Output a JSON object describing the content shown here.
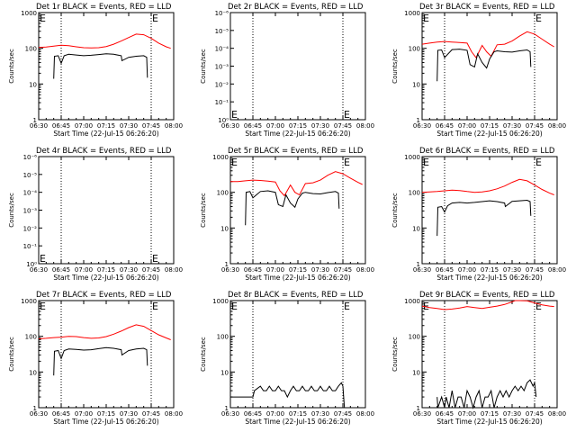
{
  "colors": {
    "events": "#000000",
    "lld": "#ff0000",
    "axes": "#000000",
    "background": "#ffffff"
  },
  "x_tick_labels": [
    "06:30",
    "06:45",
    "07:00",
    "07:15",
    "07:30",
    "07:45",
    "08:00"
  ],
  "x_range_minutes": [
    0,
    90
  ],
  "vlines_minutes": [
    15,
    75
  ],
  "xlabel": "Start Time (22-Jul-15 06:26:20)",
  "ylabel": "Counts/sec",
  "marker_text": "E",
  "log_ticks": [
    "1",
    "10",
    "100",
    "1000"
  ],
  "empty_ticks": [
    "10⁰",
    "10⁻¹",
    "10⁻²",
    "10⁻³",
    "10⁻⁴",
    "10⁻⁵",
    "10⁻⁶"
  ],
  "chart_data": [
    {
      "type": "line",
      "title": "Det 1r BLACK = Events, RED = LLD",
      "empty": false,
      "ylim": [
        1,
        1000
      ],
      "yscale": "log",
      "series": [
        {
          "color": "#ff0000",
          "x": [
            0,
            5,
            10,
            15,
            20,
            25,
            30,
            35,
            40,
            45,
            50,
            55,
            60,
            65,
            70,
            75,
            80,
            85,
            88
          ],
          "values": [
            105,
            108,
            115,
            122,
            118,
            110,
            104,
            102,
            104,
            112,
            130,
            160,
            200,
            250,
            240,
            190,
            140,
            110,
            100
          ]
        },
        {
          "color": "#000000",
          "x": [
            10,
            10.5,
            13,
            15,
            17,
            20,
            25,
            30,
            35,
            40,
            45,
            50,
            55,
            55.5,
            60,
            65,
            70,
            72,
            72.5
          ],
          "values": [
            14,
            60,
            62,
            38,
            62,
            68,
            65,
            62,
            64,
            67,
            70,
            68,
            62,
            45,
            56,
            60,
            62,
            56,
            15
          ]
        }
      ]
    },
    {
      "type": "line",
      "title": "Det 2r BLACK = Events, RED = LLD",
      "empty": true,
      "series": []
    },
    {
      "type": "line",
      "title": "Det 3r BLACK = Events, RED = LLD",
      "empty": false,
      "ylim": [
        1,
        1000
      ],
      "yscale": "log",
      "series": [
        {
          "color": "#ff0000",
          "x": [
            0,
            5,
            10,
            15,
            20,
            25,
            30,
            33,
            36,
            40,
            43,
            46,
            50,
            55,
            60,
            65,
            70,
            75,
            80,
            85,
            88
          ],
          "values": [
            130,
            140,
            150,
            155,
            150,
            145,
            140,
            80,
            55,
            120,
            80,
            60,
            125,
            130,
            160,
            220,
            290,
            250,
            180,
            130,
            110
          ]
        },
        {
          "color": "#000000",
          "x": [
            10,
            10.5,
            13,
            15,
            20,
            25,
            30,
            32,
            35,
            37,
            40,
            43,
            45,
            48,
            50,
            55,
            60,
            65,
            70,
            72,
            72.5
          ],
          "values": [
            12,
            88,
            90,
            55,
            92,
            95,
            88,
            35,
            30,
            70,
            40,
            28,
            50,
            80,
            85,
            80,
            78,
            85,
            90,
            80,
            30
          ]
        }
      ]
    },
    {
      "type": "line",
      "title": "Det 4r BLACK = Events, RED = LLD",
      "empty": true,
      "series": []
    },
    {
      "type": "line",
      "title": "Det 5r BLACK = Events, RED = LLD",
      "empty": false,
      "ylim": [
        1,
        1000
      ],
      "yscale": "log",
      "series": [
        {
          "color": "#ff0000",
          "x": [
            0,
            5,
            10,
            15,
            20,
            25,
            30,
            33,
            36,
            40,
            43,
            46,
            50,
            55,
            60,
            65,
            70,
            75,
            80,
            85,
            88
          ],
          "values": [
            200,
            200,
            210,
            220,
            215,
            205,
            195,
            110,
            80,
            160,
            100,
            85,
            175,
            185,
            220,
            300,
            380,
            330,
            250,
            190,
            165
          ]
        },
        {
          "color": "#000000",
          "x": [
            10,
            10.5,
            13,
            15,
            20,
            25,
            30,
            32,
            35,
            37,
            40,
            43,
            45,
            48,
            50,
            55,
            60,
            65,
            70,
            72,
            72.5
          ],
          "values": [
            12,
            100,
            105,
            70,
            105,
            110,
            100,
            45,
            40,
            85,
            50,
            38,
            65,
            95,
            100,
            92,
            90,
            98,
            105,
            95,
            35
          ]
        }
      ]
    },
    {
      "type": "line",
      "title": "Det 6r BLACK = Events, RED = LLD",
      "empty": false,
      "ylim": [
        1,
        1000
      ],
      "yscale": "log",
      "series": [
        {
          "color": "#ff0000",
          "x": [
            0,
            5,
            10,
            15,
            20,
            25,
            30,
            35,
            40,
            45,
            50,
            55,
            60,
            65,
            70,
            75,
            80,
            85,
            88
          ],
          "values": [
            100,
            102,
            105,
            110,
            115,
            112,
            105,
            100,
            102,
            110,
            125,
            150,
            190,
            230,
            210,
            160,
            120,
            95,
            85
          ]
        },
        {
          "color": "#000000",
          "x": [
            10,
            10.5,
            13,
            15,
            17,
            20,
            25,
            30,
            35,
            40,
            45,
            50,
            55,
            55.5,
            60,
            65,
            70,
            72,
            72.5
          ],
          "values": [
            6,
            38,
            40,
            28,
            42,
            50,
            52,
            50,
            52,
            55,
            58,
            55,
            50,
            40,
            56,
            58,
            60,
            55,
            22
          ]
        }
      ]
    },
    {
      "type": "line",
      "title": "Det 7r BLACK = Events, RED = LLD",
      "empty": false,
      "ylim": [
        1,
        1000
      ],
      "yscale": "log",
      "series": [
        {
          "color": "#ff0000",
          "x": [
            0,
            5,
            10,
            15,
            20,
            25,
            30,
            35,
            40,
            45,
            50,
            55,
            60,
            65,
            70,
            75,
            80,
            85,
            88
          ],
          "values": [
            85,
            88,
            92,
            95,
            100,
            98,
            92,
            88,
            90,
            98,
            115,
            140,
            175,
            210,
            190,
            145,
            110,
            90,
            80
          ]
        },
        {
          "color": "#000000",
          "x": [
            10,
            10.5,
            13,
            15,
            17,
            20,
            25,
            30,
            35,
            40,
            45,
            50,
            55,
            55.5,
            60,
            65,
            70,
            72,
            72.5
          ],
          "values": [
            8,
            38,
            40,
            24,
            40,
            44,
            43,
            41,
            42,
            45,
            48,
            46,
            42,
            30,
            40,
            44,
            46,
            42,
            15
          ]
        }
      ]
    },
    {
      "type": "line",
      "title": "Det 8r BLACK = Events, RED = LLD",
      "empty": false,
      "ylim": [
        1,
        1000
      ],
      "yscale": "log",
      "series": [
        {
          "color": "#000000",
          "x": [
            0,
            5,
            10,
            15,
            16,
            20,
            22,
            24,
            26,
            28,
            30,
            32,
            34,
            36,
            38,
            40,
            42,
            44,
            46,
            48,
            50,
            52,
            54,
            56,
            58,
            60,
            62,
            64,
            66,
            68,
            70,
            72,
            74,
            75,
            76
          ],
          "values": [
            2,
            2,
            2,
            2,
            3,
            4,
            3,
            3,
            4,
            3,
            3,
            4,
            3,
            3,
            2,
            3,
            4,
            3,
            3,
            4,
            3,
            3,
            4,
            3,
            3,
            4,
            3,
            3,
            4,
            3,
            3,
            4,
            5,
            4,
            1
          ]
        }
      ]
    },
    {
      "type": "line",
      "title": "Det 9r BLACK = Events, RED = LLD",
      "empty": false,
      "ylim": [
        1,
        1000
      ],
      "yscale": "log",
      "series": [
        {
          "color": "#ff0000",
          "x": [
            0,
            5,
            10,
            15,
            20,
            25,
            30,
            35,
            40,
            45,
            50,
            55,
            60,
            62,
            65,
            70,
            75,
            80,
            85,
            88
          ],
          "values": [
            700,
            640,
            600,
            560,
            580,
            620,
            680,
            640,
            600,
            650,
            700,
            780,
            920,
            1050,
            1100,
            980,
            860,
            760,
            700,
            680
          ]
        },
        {
          "color": "#000000",
          "x": [
            10,
            10.5,
            13,
            15,
            16,
            18,
            20,
            22,
            24,
            26,
            28,
            30,
            32,
            34,
            36,
            38,
            40,
            42,
            44,
            46,
            48,
            50,
            52,
            54,
            56,
            58,
            60,
            62,
            64,
            66,
            68,
            70,
            72,
            74,
            75,
            76
          ],
          "values": [
            2,
            1,
            2,
            1,
            2,
            1,
            3,
            1,
            2,
            2,
            1,
            3,
            2,
            1,
            2,
            3,
            1,
            2,
            2,
            3,
            1,
            2,
            3,
            2,
            3,
            2,
            3,
            4,
            3,
            4,
            3,
            5,
            6,
            4,
            5,
            2
          ]
        }
      ]
    }
  ]
}
